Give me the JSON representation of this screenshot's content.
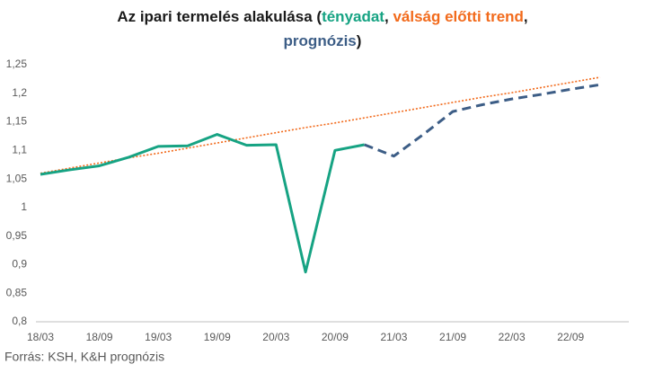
{
  "chart_data": {
    "type": "line",
    "title_parts": [
      "Az ipari termelés alakulása (",
      ", ",
      ",",
      ")"
    ],
    "source": "Forrás: KSH, K&H prognózis",
    "categories": [
      "18/03",
      null,
      "18/09",
      null,
      "19/03",
      null,
      "19/09",
      null,
      "20/03",
      null,
      "20/09",
      null,
      "21/03",
      null,
      "21/09",
      null,
      "22/03",
      null,
      "22/09",
      null
    ],
    "series": [
      {
        "name": "tényadat",
        "color": "#16a383",
        "style": "solid",
        "values": [
          1.058,
          1.066,
          1.073,
          1.088,
          1.107,
          1.108,
          1.128,
          1.109,
          1.11,
          0.887,
          1.1,
          1.11,
          null,
          null,
          null,
          null,
          null,
          null,
          null,
          null
        ]
      },
      {
        "name": "válság előtti trend",
        "color": "#f26a1b",
        "style": "dotted",
        "values": [
          1.06,
          1.069,
          1.078,
          1.087,
          1.095,
          1.104,
          1.113,
          1.122,
          1.131,
          1.14,
          1.148,
          1.157,
          1.166,
          1.175,
          1.184,
          1.193,
          1.201,
          1.21,
          1.219,
          1.228
        ]
      },
      {
        "name": "prognózis",
        "color": "#3c5d86",
        "style": "dashed",
        "values": [
          null,
          null,
          null,
          null,
          null,
          null,
          null,
          null,
          null,
          null,
          null,
          1.11,
          1.09,
          1.128,
          1.168,
          1.18,
          1.19,
          1.198,
          1.207,
          1.215
        ]
      }
    ],
    "ylim": [
      0.8,
      1.25
    ],
    "yticks": [
      {
        "value": 0.8,
        "label": "0,8"
      },
      {
        "value": 0.85,
        "label": "0,85"
      },
      {
        "value": 0.9,
        "label": "0,9"
      },
      {
        "value": 0.95,
        "label": "0,95"
      },
      1,
      {
        "value": 1.05,
        "label": "1,05"
      },
      {
        "value": 1.1,
        "label": "1,1"
      },
      {
        "value": 1.15,
        "label": "1,15"
      },
      {
        "value": 1.2,
        "label": "1,2"
      },
      {
        "value": 1.25,
        "label": "1,25"
      }
    ],
    "grid": false
  }
}
